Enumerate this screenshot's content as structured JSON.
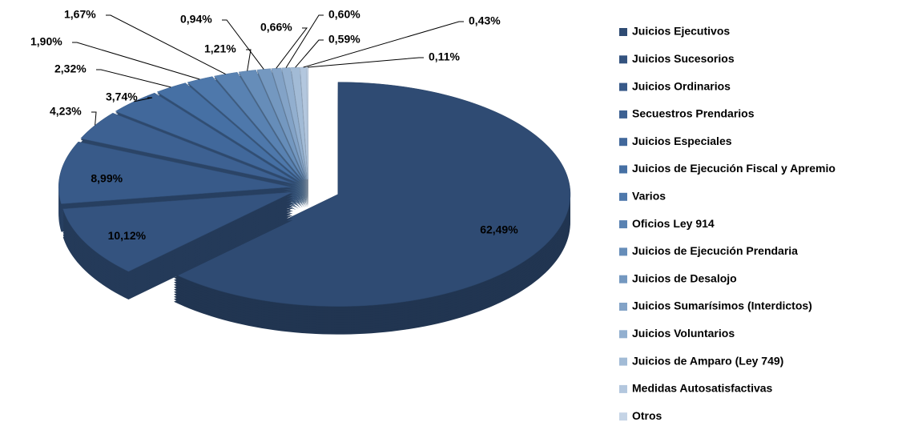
{
  "chart_data": {
    "type": "pie",
    "categories": [
      "Juicios Ejecutivos",
      "Juicios Sucesorios",
      "Juicios Ordinarios",
      "Secuestros Prendarios",
      "Juicios Especiales",
      "Juicios de Ejecución Fiscal y Apremio",
      "Varios",
      "Oficios Ley 914",
      "Juicios de Ejecución Prendaria",
      "Juicios de Desalojo",
      "Juicios Sumarísimos (Interdictos)",
      "Juicios Voluntarios",
      "Juicios de Amparo (Ley 749)",
      "Medidas Autosatisfactivas",
      "Otros"
    ],
    "values": [
      62.49,
      10.12,
      8.99,
      4.23,
      3.74,
      2.32,
      1.9,
      1.67,
      1.21,
      0.94,
      0.66,
      0.6,
      0.59,
      0.43,
      0.11
    ],
    "value_labels": [
      "62,49%",
      "10,12%",
      "8,99%",
      "4,23%",
      "3,74%",
      "2,32%",
      "1,90%",
      "1,67%",
      "1,21%",
      "0,94%",
      "0,66%",
      "0,60%",
      "0,59%",
      "0,43%",
      "0,11%"
    ],
    "colors": [
      "#2f4b73",
      "#34537f",
      "#385a89",
      "#3d6192",
      "#41689b",
      "#4670a4",
      "#4e78ab",
      "#5982b2",
      "#668db9",
      "#7498c0",
      "#83a3c7",
      "#92afcf",
      "#a2bbd6",
      "#b3c7de",
      "#c5d4e6"
    ],
    "legend": "right"
  }
}
